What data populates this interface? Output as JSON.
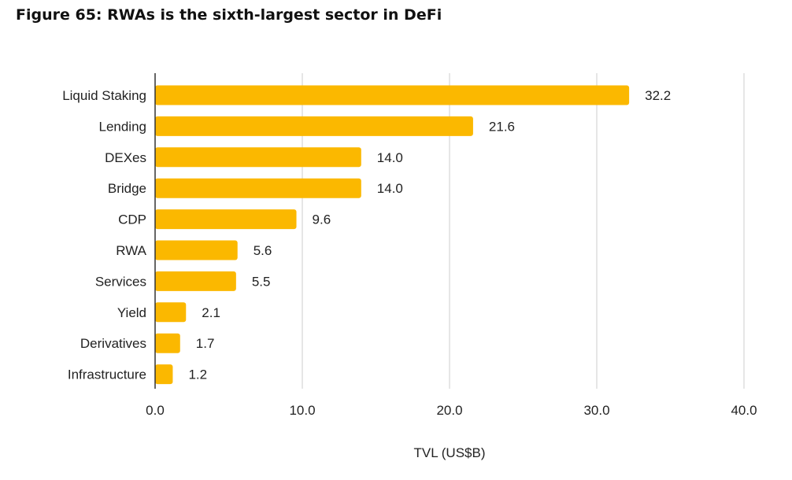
{
  "figure_title": "Figure 65: RWAs is the sixth-largest sector in DeFi",
  "chart_data": {
    "type": "bar",
    "orientation": "horizontal",
    "title": "Figure 65: RWAs is the sixth-largest sector in DeFi",
    "categories": [
      "Liquid Staking",
      "Lending",
      "DEXes",
      "Bridge",
      "CDP",
      "RWA",
      "Services",
      "Yield",
      "Derivatives",
      "Infrastructure"
    ],
    "values": [
      32.2,
      21.6,
      14.0,
      14.0,
      9.6,
      5.6,
      5.5,
      2.1,
      1.7,
      1.2
    ],
    "value_labels": [
      "32.2",
      "21.6",
      "14.0",
      "14.0",
      "9.6",
      "5.6",
      "5.5",
      "2.1",
      "1.7",
      "1.2"
    ],
    "xlabel": "TVL (US$B)",
    "ylabel": "",
    "xlim": [
      0,
      40
    ],
    "xticks": [
      0,
      10,
      20,
      30,
      40
    ],
    "xtick_labels": [
      "0.0",
      "10.0",
      "20.0",
      "30.0",
      "40.0"
    ],
    "grid": true,
    "legend": "none",
    "bar_color": "#FBB800",
    "grid_color": "#CCCCCC",
    "axis_color": "#333333"
  }
}
